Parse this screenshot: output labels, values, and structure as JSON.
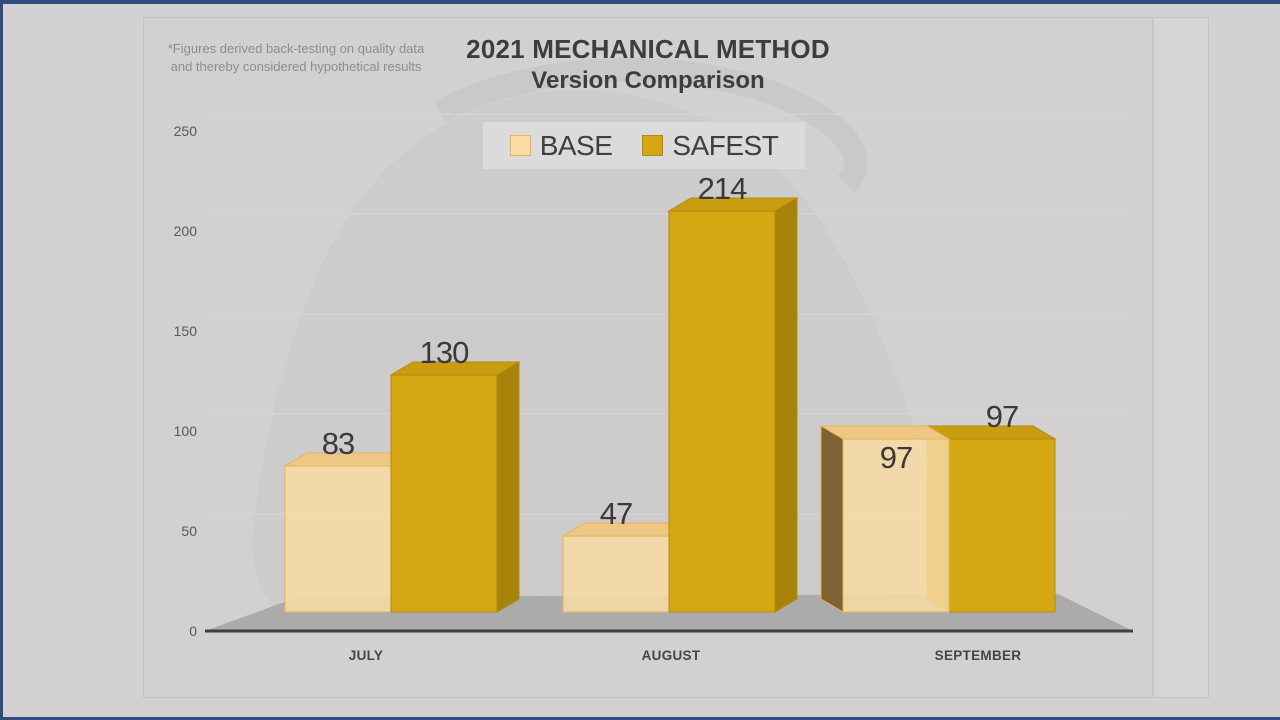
{
  "slide": {
    "background": "#D2D0D1",
    "window_frame_color": "#2F4C7D",
    "chart_frame_border": "#C4C2C3",
    "watermark": "bell-silhouette"
  },
  "disclaimer": {
    "line1": "*Figures derived back-testing on quality data",
    "line2": "and thereby considered hypothetical results"
  },
  "title": {
    "line1": "2021 MECHANICAL METHOD",
    "line2": "Version Comparison"
  },
  "legend": {
    "background": "#DCDBDB",
    "items": [
      {
        "label": "BASE",
        "color": "#F9DCA3",
        "border": "#E7B559"
      },
      {
        "label": "SAFEST",
        "color": "#D5A712",
        "border": "#B28A0C"
      }
    ]
  },
  "chart_data": {
    "type": "bar",
    "style": "3d-clustered",
    "title": "2021 MECHANICAL METHOD Version Comparison",
    "categories": [
      "JULY",
      "AUGUST",
      "SEPTEMBER"
    ],
    "series": [
      {
        "name": "BASE",
        "values": [
          83,
          47,
          97
        ],
        "color": "#F9DCA3",
        "top_color": "#EDC783",
        "side_color": "#E3B25F",
        "side_color_dark": "#7E6234",
        "edge_color": "#E7B559",
        "front_opacity": 0.85
      },
      {
        "name": "SAFEST",
        "values": [
          130,
          214,
          97
        ],
        "color": "#D5A712",
        "top_color": "#C89D10",
        "side_color": "#A8830C",
        "side_color_dark": "#B68D0E",
        "edge_color": "#B28A0C",
        "front_opacity": 1
      }
    ],
    "ylim": [
      0,
      250
    ],
    "yticks": [
      0,
      50,
      100,
      150,
      200,
      250
    ],
    "grid": true,
    "value_labels": true,
    "legend_position": "top-center",
    "floor_color": "#ACABAB",
    "axis_line_color": "#3F3F3F",
    "gridline_color": "#DAD8D9",
    "tick_label_color": "#58595B",
    "category_label_color": "#454545",
    "value_label_color": "#3A3A3A"
  }
}
